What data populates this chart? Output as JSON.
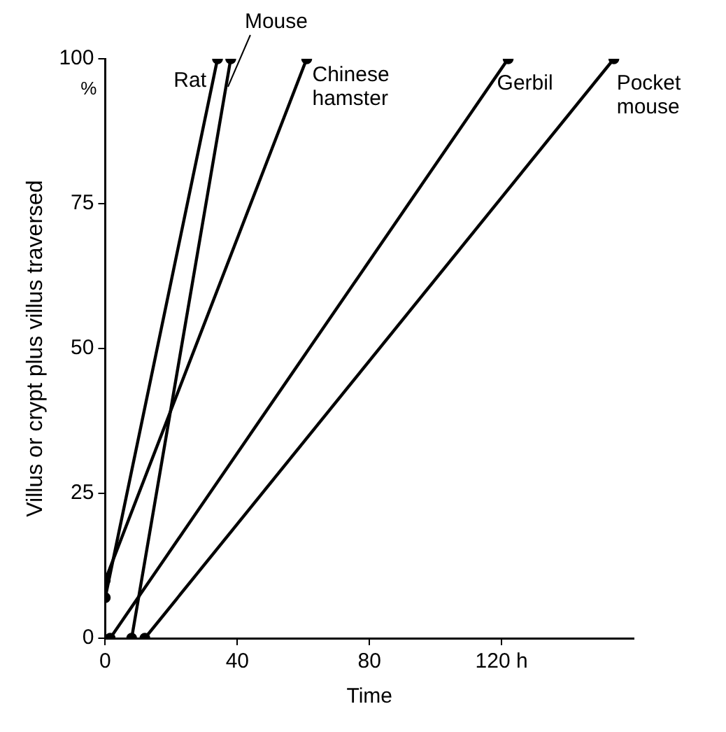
{
  "chart_data": {
    "type": "line",
    "xlabel": "Time",
    "ylabel": "Villus or crypt plus villus traversed",
    "annotations": [
      "%"
    ],
    "xlim": [
      0,
      160
    ],
    "xticks": [
      0,
      40,
      80,
      {
        "value": 120,
        "label": "120 h"
      }
    ],
    "ylim": [
      0,
      100
    ],
    "yticks": [
      0,
      25,
      50,
      75,
      100
    ],
    "grid": false,
    "legend": false,
    "marker": "circle",
    "line_style": "solid",
    "series": [
      {
        "name": "Rat",
        "color": "#000000",
        "x": [
          0,
          34
        ],
        "values": [
          7,
          100
        ]
      },
      {
        "name": "Mouse",
        "color": "#000000",
        "x": [
          8,
          38
        ],
        "values": [
          0,
          100
        ]
      },
      {
        "name": "Chinese hamster",
        "color": "#000000",
        "x": [
          0,
          61
        ],
        "values": [
          10,
          100
        ]
      },
      {
        "name": "Gerbil",
        "color": "#000000",
        "x": [
          1.5,
          122
        ],
        "values": [
          0,
          100
        ]
      },
      {
        "name": "Pocket mouse",
        "color": "#000000",
        "x": [
          12,
          154
        ],
        "values": [
          0,
          100
        ]
      }
    ]
  }
}
